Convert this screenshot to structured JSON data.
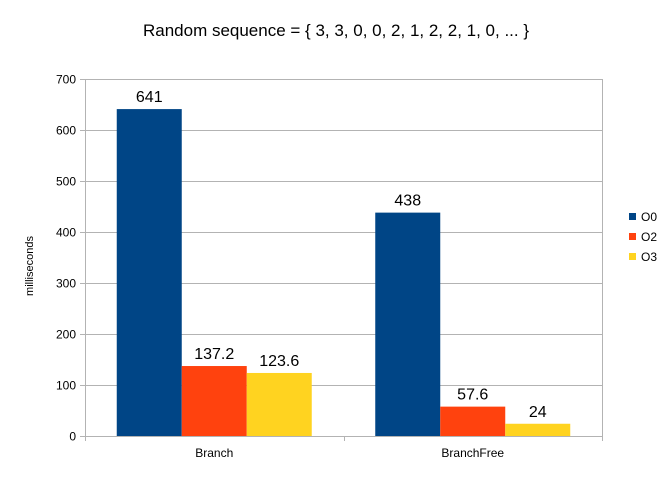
{
  "chart_data": {
    "type": "bar",
    "title": "Random sequence = { 3, 3, 0, 0, 2, 1, 2, 2, 1, 0, ... }",
    "xlabel": "",
    "ylabel": "milliseconds",
    "ylim": [
      0,
      700
    ],
    "yticks": [
      "0",
      "100",
      "200",
      "300",
      "400",
      "500",
      "600",
      "700"
    ],
    "categories": [
      "Branch",
      "BranchFree"
    ],
    "series": [
      {
        "name": "O0",
        "values": [
          641,
          438
        ],
        "labels": [
          "641",
          "438"
        ],
        "color": "#004586"
      },
      {
        "name": "O2",
        "values": [
          137.2,
          57.6
        ],
        "labels": [
          "137.2",
          "57.6"
        ],
        "color": "#ff420e"
      },
      {
        "name": "O3",
        "values": [
          123.6,
          24
        ],
        "labels": [
          "123.6",
          "24"
        ],
        "color": "#ffd320"
      }
    ],
    "grid": true,
    "legend": "right"
  }
}
